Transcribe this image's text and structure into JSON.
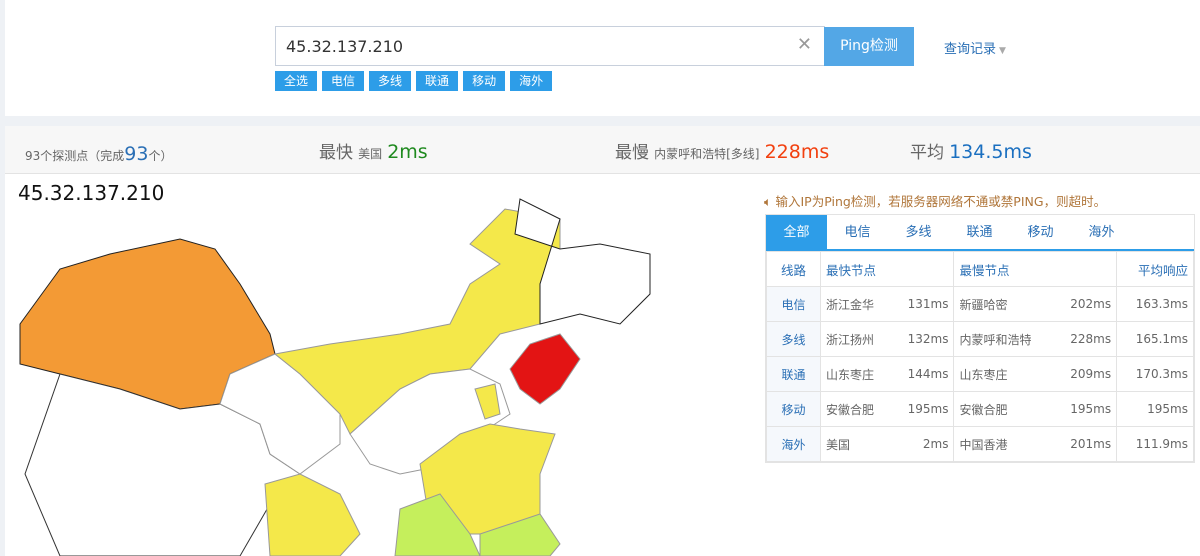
{
  "search": {
    "value": "45.32.137.210",
    "button": "Ping检测",
    "history": "查询记录"
  },
  "chips": [
    "全选",
    "电信",
    "多线",
    "联通",
    "移动",
    "海外"
  ],
  "stats": {
    "probes": "93个探测点（完成",
    "done": "93",
    "probes_end": "个）",
    "fast_label": "最快",
    "fast_loc": "美国",
    "fast_val": "2ms",
    "slow_label": "最慢",
    "slow_loc": "内蒙呼和浩特[多线]",
    "slow_val": "228ms",
    "avg_label": "平均",
    "avg_val": "134.5ms"
  },
  "map": {
    "title": "45.32.137.210",
    "colors": {
      "orange": "#f39a35",
      "yellow": "#f4e84a",
      "red": "#e31414",
      "green": "#c5ef5c",
      "white": "#ffffff"
    }
  },
  "notice": "输入IP为Ping检测，若服务器网络不通或禁PING，则超时。",
  "tabs": [
    "全部",
    "电信",
    "多线",
    "联通",
    "移动",
    "海外"
  ],
  "table": {
    "headers": [
      "线路",
      "最快节点",
      "最慢节点",
      "平均响应"
    ],
    "rows": [
      [
        "电信",
        "浙江金华",
        "131ms",
        "新疆哈密",
        "202ms",
        "163.3ms"
      ],
      [
        "多线",
        "浙江扬州",
        "132ms",
        "内蒙呼和浩特",
        "228ms",
        "165.1ms"
      ],
      [
        "联通",
        "山东枣庄",
        "144ms",
        "山东枣庄",
        "209ms",
        "170.3ms"
      ],
      [
        "移动",
        "安徽合肥",
        "195ms",
        "安徽合肥",
        "195ms",
        "195ms"
      ],
      [
        "海外",
        "美国",
        "2ms",
        "中国香港",
        "201ms",
        "111.9ms"
      ]
    ]
  }
}
